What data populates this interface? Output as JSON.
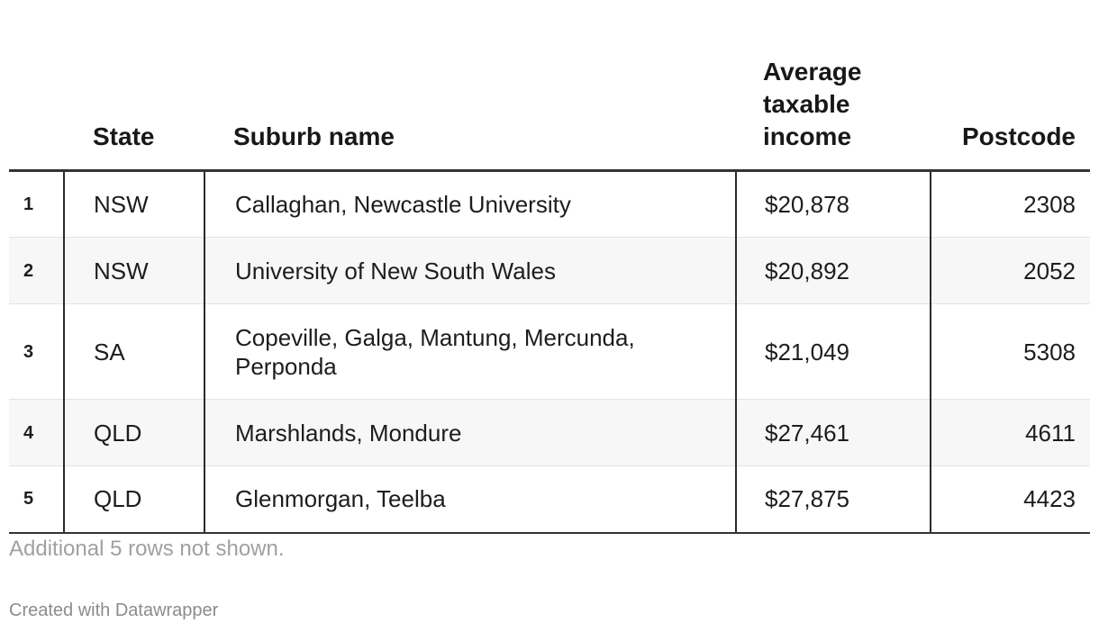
{
  "table": {
    "headers": {
      "rank": "",
      "state": "State",
      "suburb": "Suburb name",
      "income_line1": "Average",
      "income_line2": "taxable",
      "income_line3": "income",
      "postcode": "Postcode"
    },
    "rows": [
      {
        "rank": "1",
        "state": "NSW",
        "suburb": "Callaghan, Newcastle University",
        "income": "$20,878",
        "postcode": "2308"
      },
      {
        "rank": "2",
        "state": "NSW",
        "suburb": "University of New South Wales",
        "income": "$20,892",
        "postcode": "2052"
      },
      {
        "rank": "3",
        "state": "SA",
        "suburb_line1": "Copeville, Galga, Mantung, Mercunda,",
        "suburb_line2": "Perponda",
        "income": "$21,049",
        "postcode": "5308"
      },
      {
        "rank": "4",
        "state": "QLD",
        "suburb": "Marshlands, Mondure",
        "income": "$27,461",
        "postcode": "4611"
      },
      {
        "rank": "5",
        "state": "QLD",
        "suburb": "Glenmorgan, Teelba",
        "income": "$27,875",
        "postcode": "4423"
      }
    ]
  },
  "notes": "Additional 5 rows not shown.",
  "credit": "Created with Datawrapper"
}
